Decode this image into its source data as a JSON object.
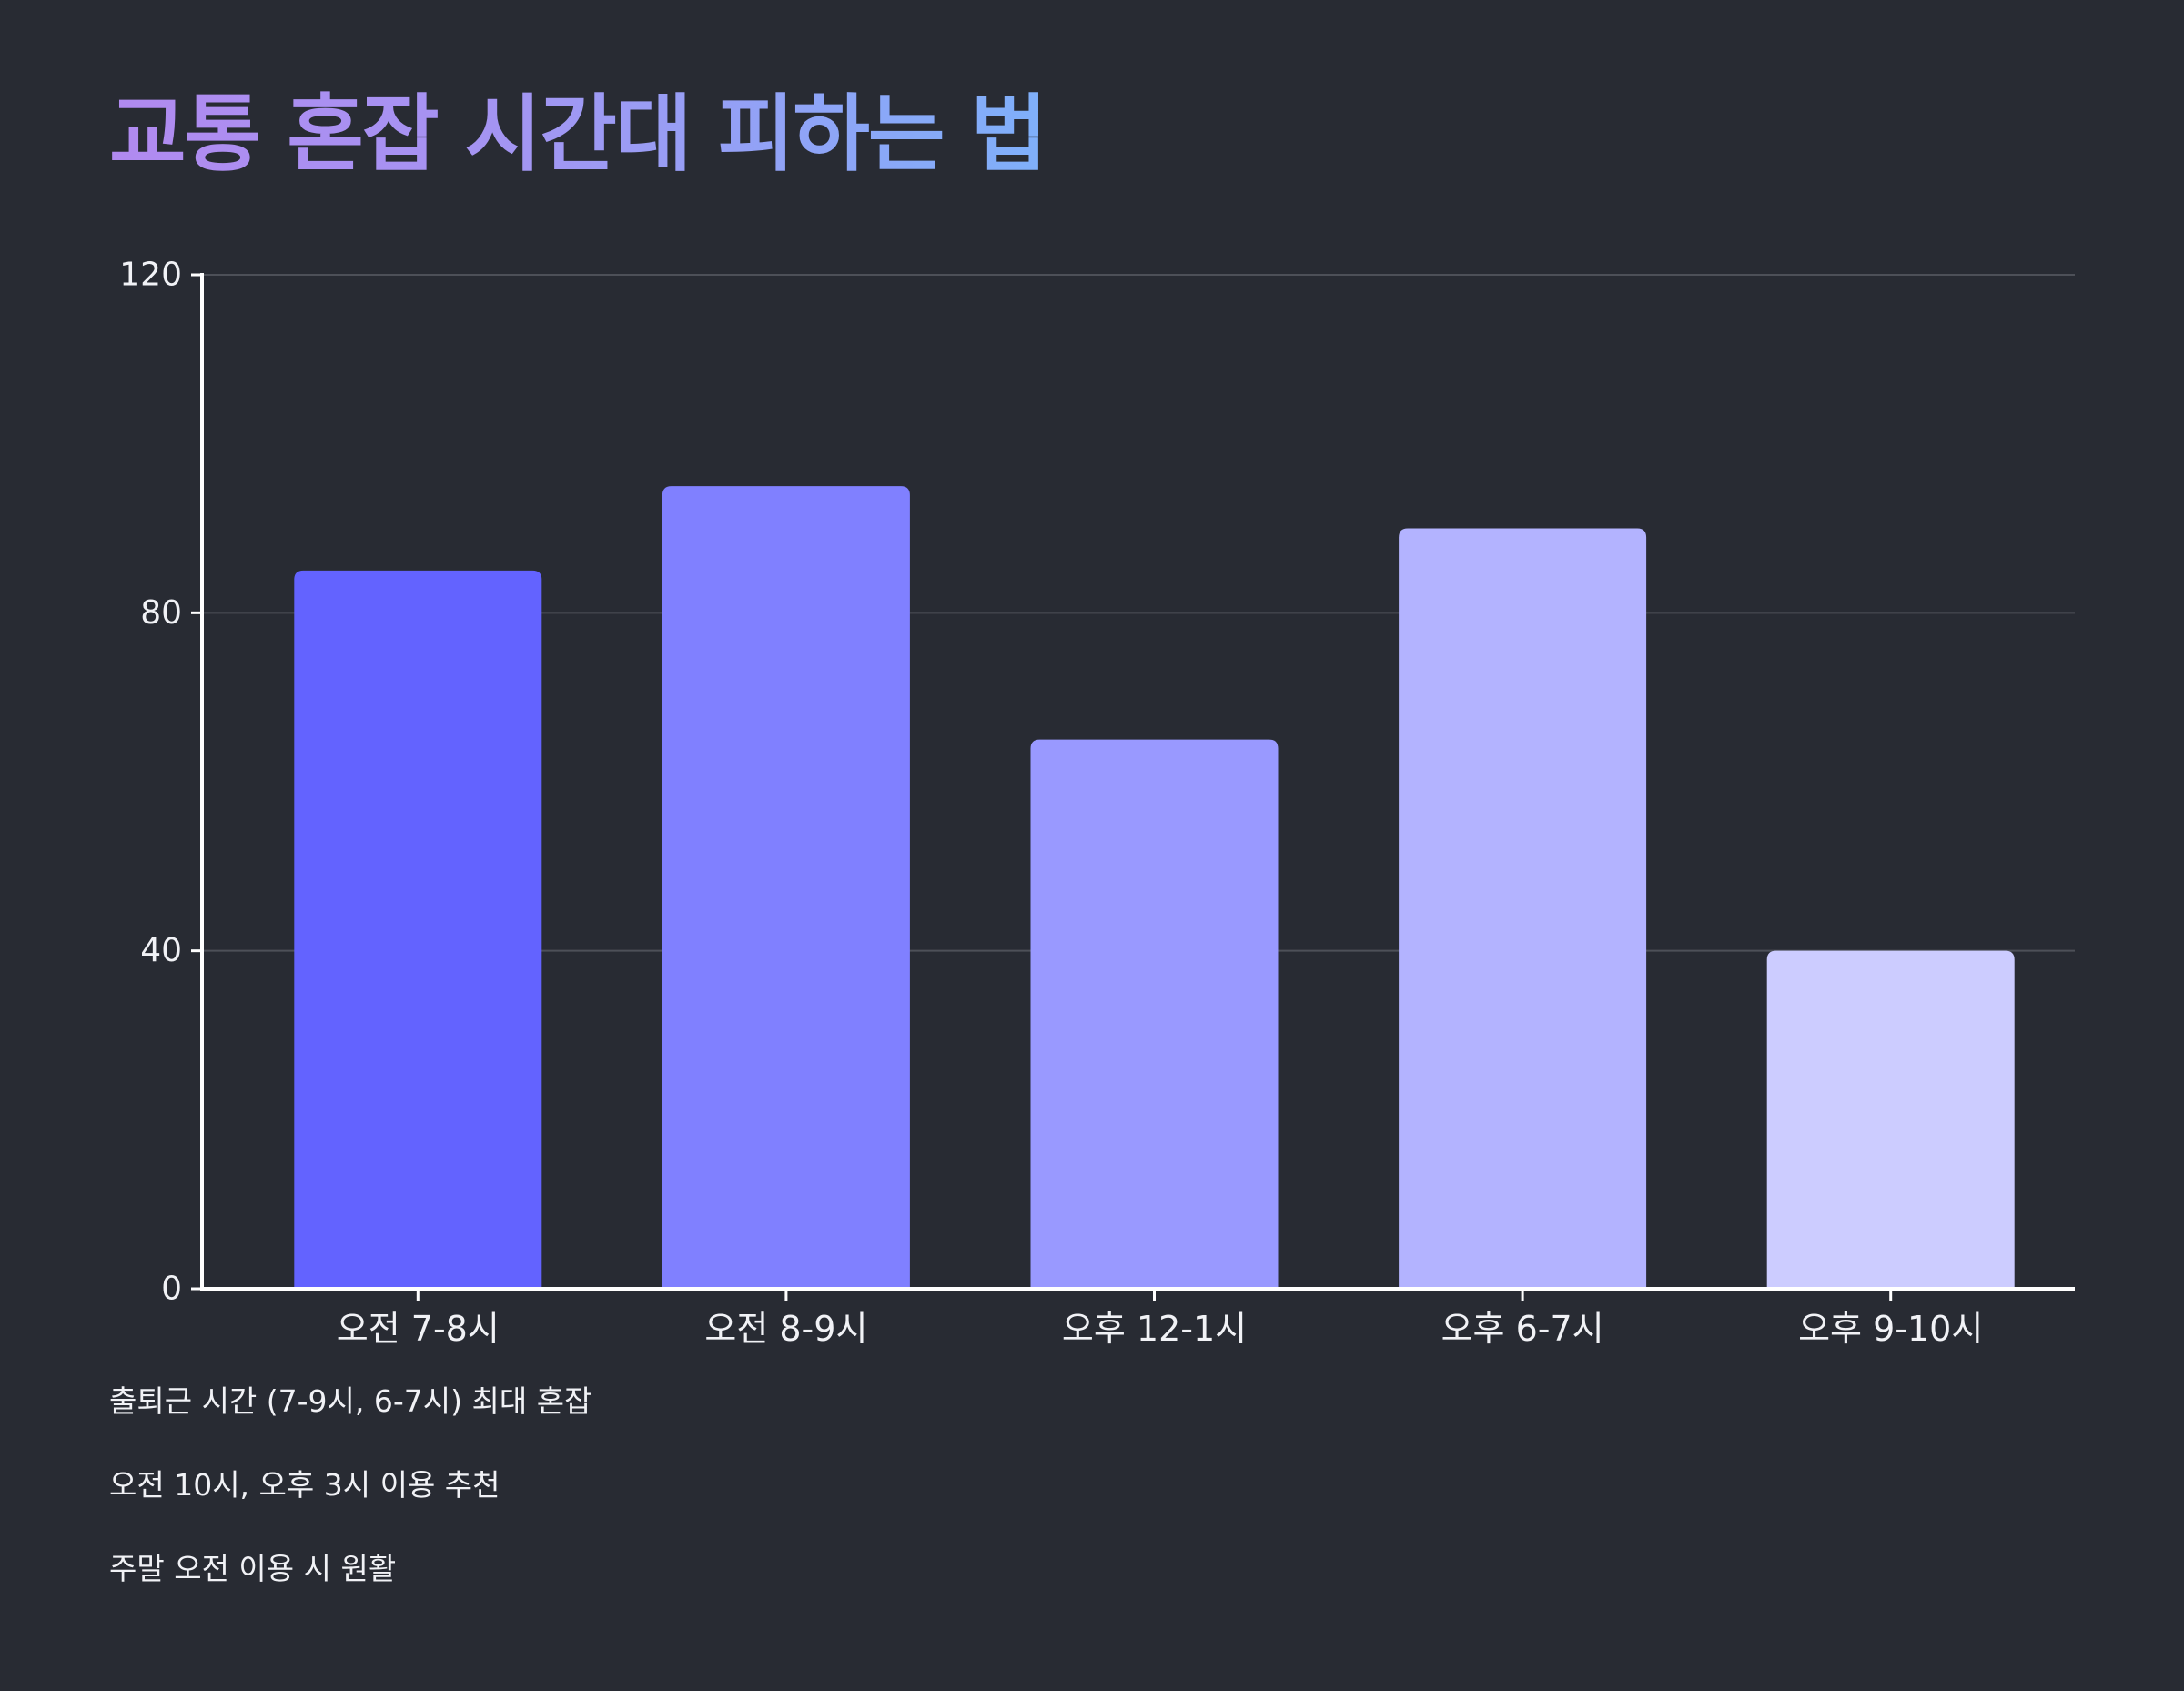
{
  "title": "교통 혼잡 시간대 피하는 법",
  "chart_data": {
    "type": "bar",
    "title": "교통 혼잡 시간대 피하는 법",
    "categories": [
      "오전 7-8시",
      "오전 8-9시",
      "오후 12-1시",
      "오후 6-7시",
      "오후 9-10시"
    ],
    "values": [
      85,
      95,
      65,
      90,
      40
    ],
    "bar_colors": [
      "#6363ff",
      "#8080ff",
      "#9999ff",
      "#b3b3ff",
      "#ccccff"
    ],
    "ylim": [
      0,
      120
    ],
    "yticks": [
      0,
      40,
      80,
      120
    ],
    "xlabel": "",
    "ylabel": "",
    "grid": true,
    "legend": "none"
  },
  "notes": [
    "출퇴근 시간 (7-9시, 6-7시) 최대 혼잡",
    "오전 10시, 오후 3시 이용 추천",
    "주말 오전 이용 시 원활"
  ],
  "colors": {
    "background": "#282b33",
    "axis": "#ffffff",
    "grid": "#4d5058",
    "text": "#f1f2f6"
  }
}
